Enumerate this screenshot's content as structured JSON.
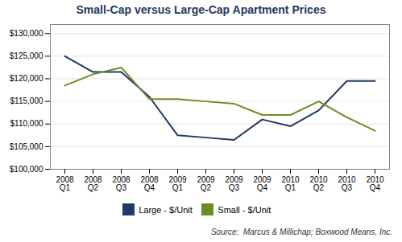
{
  "chart_data": {
    "type": "line",
    "title": "Small-Cap versus Large-Cap Apartment Prices",
    "categories": [
      "2008\nQ1",
      "2008\nQ2",
      "2008\nQ3",
      "2008\nQ4",
      "2009\nQ1",
      "2009\nQ2",
      "2009\nQ3",
      "2009\nQ4",
      "2010\nQ1",
      "2010\nQ2",
      "2010\nQ3",
      "2010\nQ4"
    ],
    "series": [
      {
        "name": "Large - $/Unit",
        "color": "#1f3864",
        "values": [
          125000,
          121500,
          121500,
          116000,
          107500,
          107000,
          106500,
          111000,
          109500,
          113000,
          119500,
          119500
        ]
      },
      {
        "name": "Small - $/Unit",
        "color": "#6b8e23",
        "values": [
          118500,
          121000,
          122500,
          115500,
          115500,
          115000,
          114500,
          112000,
          112000,
          115000,
          111500,
          108500
        ]
      }
    ],
    "ylim": [
      100000,
      132000
    ],
    "yticks": [
      {
        "value": 100000,
        "label": "$100,000"
      },
      {
        "value": 105000,
        "label": "$105,000"
      },
      {
        "value": 110000,
        "label": "$110,000"
      },
      {
        "value": 115000,
        "label": "$115,000"
      },
      {
        "value": 120000,
        "label": "$120,000"
      },
      {
        "value": 125000,
        "label": "$125,000"
      },
      {
        "value": 130000,
        "label": "$130,000"
      }
    ],
    "grid": true,
    "legend": "bottom",
    "annotations": [
      "Source:  Marcus & Millichap; Boxwood Means, Inc."
    ]
  }
}
